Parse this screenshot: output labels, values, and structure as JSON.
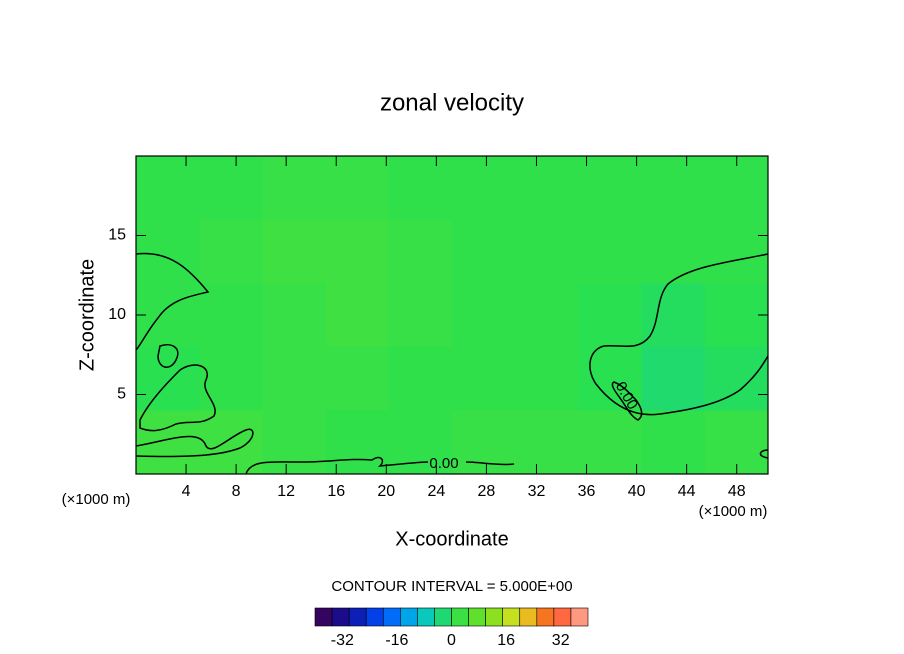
{
  "chart_data": {
    "type": "contour",
    "title": "zonal velocity",
    "x_label": "X-coordinate",
    "y_label": "Z-coordinate",
    "x_unit": "(×1000 m)",
    "y_unit": "(×1000 m)",
    "xlim": [
      0,
      50.5
    ],
    "ylim": [
      0,
      20
    ],
    "xticks": [
      4,
      8,
      12,
      16,
      20,
      24,
      28,
      32,
      36,
      40,
      44,
      48
    ],
    "yticks": [
      5,
      10,
      15
    ],
    "z": [
      [
        1,
        1,
        2,
        2,
        1,
        1,
        1,
        1,
        1,
        1
      ],
      [
        1,
        2,
        3,
        3,
        2,
        1,
        1,
        1,
        1,
        1
      ],
      [
        1,
        1,
        2,
        3,
        2,
        1,
        1,
        0,
        -1,
        0
      ],
      [
        0,
        1,
        2,
        2,
        1,
        1,
        1,
        0,
        -2,
        -1
      ],
      [
        3,
        3,
        2,
        1,
        1,
        2,
        2,
        2,
        1,
        2
      ]
    ],
    "contour_levels": [
      {
        "value": 0,
        "label": "0.00"
      }
    ],
    "contour_interval_label": "CONTOUR INTERVAL = 5.000E+00",
    "colorbar_lim": [
      -40,
      40
    ],
    "colorbar_step": 5,
    "colorbar_ticks": [
      -32,
      -16,
      0,
      16,
      32
    ],
    "colormap": [
      "#40004a",
      "#1010a0",
      "#0050ff",
      "#00c0e0",
      "#28e050",
      "#70e020",
      "#e0e020",
      "#ff5020",
      "#ffb0a0"
    ]
  }
}
